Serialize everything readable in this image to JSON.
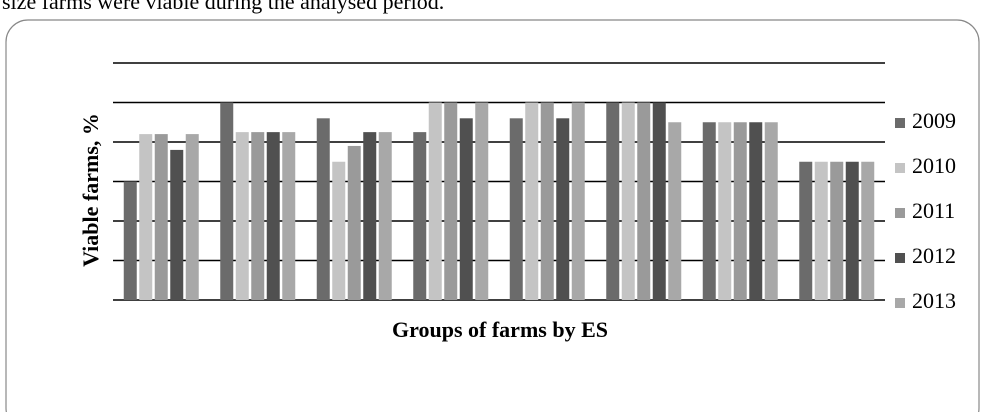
{
  "page_text": "size farms were viable during the analysed period.",
  "chart_data": {
    "type": "bar",
    "xlabel": "Groups of farms by ES",
    "ylabel": "Viable farms, %",
    "categories": [
      null,
      null,
      null,
      null,
      null,
      null,
      null,
      null
    ],
    "series": [
      {
        "name": "2009",
        "color": "#6b6b6b",
        "values": [
          60,
          100,
          92,
          85,
          92,
          100,
          90,
          70
        ]
      },
      {
        "name": "2010",
        "color": "#c4c4c4",
        "values": [
          84,
          85,
          70,
          100,
          100,
          100,
          90,
          70
        ]
      },
      {
        "name": "2011",
        "color": "#9a9a9a",
        "values": [
          84,
          85,
          78,
          100,
          100,
          100,
          90,
          70
        ]
      },
      {
        "name": "2012",
        "color": "#505050",
        "values": [
          76,
          85,
          85,
          92,
          92,
          100,
          90,
          70
        ]
      },
      {
        "name": "2013",
        "color": "#a8a8a8",
        "values": [
          84,
          85,
          85,
          100,
          100,
          90,
          90,
          70
        ]
      }
    ],
    "ylim": [
      0,
      120
    ],
    "yticks": [
      0,
      20,
      40,
      60,
      80,
      100,
      120
    ],
    "grid": true,
    "legend": "right"
  }
}
